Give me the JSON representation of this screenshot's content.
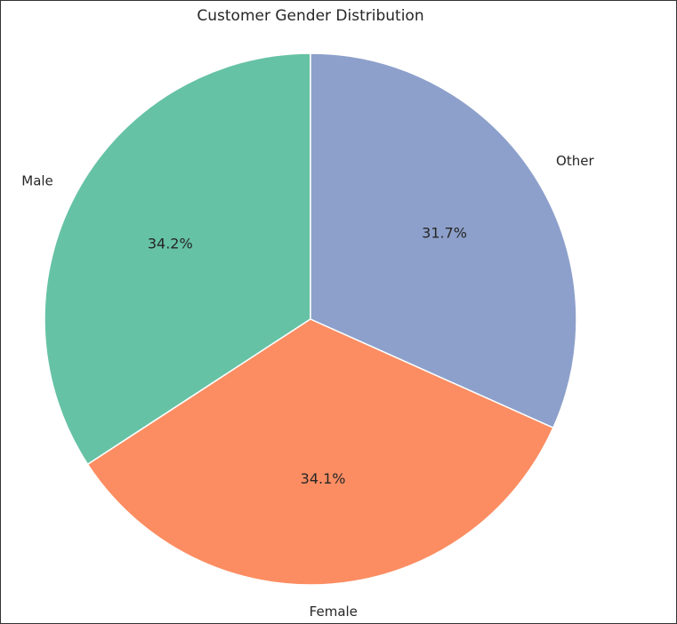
{
  "chart_data": {
    "type": "pie",
    "title": "Customer Gender Distribution",
    "slices": [
      {
        "label": "Male",
        "value": 34.2,
        "pct_label": "34.2%",
        "color": "#66c2a5"
      },
      {
        "label": "Female",
        "value": 34.1,
        "pct_label": "34.1%",
        "color": "#fc8d62"
      },
      {
        "label": "Other",
        "value": 31.7,
        "pct_label": "31.7%",
        "color": "#8da0cb"
      }
    ],
    "start_angle": 90,
    "direction": "counterclockwise",
    "edge_color": "#ffffff"
  }
}
